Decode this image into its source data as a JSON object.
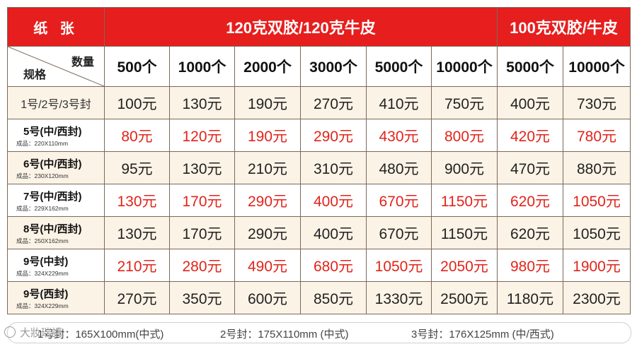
{
  "header": {
    "paper_label": "纸 张",
    "group_120": "120克双胶/120克牛皮",
    "group_100": "100克双胶/牛皮",
    "quantity_label": "数量",
    "spec_label": "规格",
    "quantities": [
      "500个",
      "1000个",
      "2000个",
      "3000个",
      "5000个",
      "10000个",
      "5000个",
      "10000个"
    ]
  },
  "rows": [
    {
      "name": "1号/2号/3号封",
      "size": "",
      "style": "plain",
      "bg": "cream",
      "color": "black",
      "prices": [
        "100元",
        "130元",
        "190元",
        "270元",
        "410元",
        "750元",
        "400元",
        "730元"
      ]
    },
    {
      "name": "5号(中/西封)",
      "size": "成品：220X110mm",
      "style": "bold",
      "bg": "white",
      "color": "red",
      "prices": [
        "80元",
        "120元",
        "190元",
        "290元",
        "430元",
        "800元",
        "420元",
        "780元"
      ]
    },
    {
      "name": "6号(中/西封)",
      "size": "成品：230X120mm",
      "style": "bold",
      "bg": "cream",
      "color": "black",
      "prices": [
        "95元",
        "130元",
        "210元",
        "310元",
        "480元",
        "900元",
        "470元",
        "880元"
      ]
    },
    {
      "name": "7号(中/西封)",
      "size": "成品：229X162mm",
      "style": "bold",
      "bg": "white",
      "color": "red",
      "prices": [
        "130元",
        "170元",
        "290元",
        "400元",
        "670元",
        "1150元",
        "620元",
        "1050元"
      ]
    },
    {
      "name": "8号(中/西封)",
      "size": "成品：250X162mm",
      "style": "bold",
      "bg": "cream",
      "color": "black",
      "prices": [
        "130元",
        "170元",
        "290元",
        "400元",
        "670元",
        "1150元",
        "620元",
        "1050元"
      ]
    },
    {
      "name": "9号(中封)",
      "size": "成品：324X229mm",
      "style": "bold",
      "bg": "white",
      "color": "red",
      "prices": [
        "210元",
        "280元",
        "490元",
        "680元",
        "1050元",
        "2050元",
        "980元",
        "1900元"
      ]
    },
    {
      "name": "9号(西封)",
      "size": "成品：324X229mm",
      "style": "bold",
      "bg": "cream",
      "color": "black",
      "prices": [
        "270元",
        "350元",
        "600元",
        "850元",
        "1330元",
        "2500元",
        "1180元",
        "2300元"
      ]
    }
  ],
  "footer": {
    "note1": "1号封：165X100mm(中式)",
    "note2": "2号封：175X110mm (中式)",
    "note3": "3号封：176X125mm (中/西式)"
  },
  "watermark": "大妝瑞讀",
  "colors": {
    "header_red": "#e61e1e",
    "price_red": "#e2231a",
    "cream_row": "#fbf3e6"
  }
}
